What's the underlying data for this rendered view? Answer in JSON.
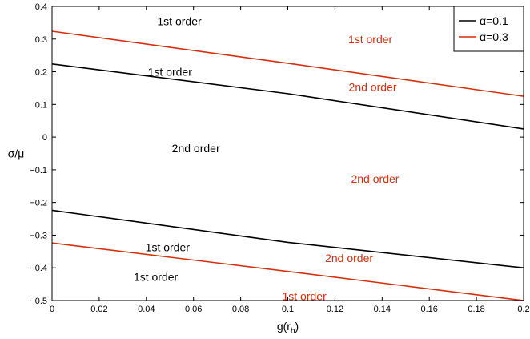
{
  "chart_data": {
    "type": "line",
    "xlabel": "g(r_h)",
    "ylabel": "σ/μ",
    "xlim": [
      0,
      0.2
    ],
    "ylim": [
      -0.5,
      0.4
    ],
    "xticks": [
      0,
      0.02,
      0.04,
      0.06,
      0.08,
      0.1,
      0.12,
      0.14,
      0.16,
      0.18,
      0.2
    ],
    "xtick_labels": [
      "0",
      "0.02",
      "0.04",
      "0.06",
      "0.08",
      "0.1",
      "0.12",
      "0.14",
      "0.16",
      "0.18",
      "0.2"
    ],
    "yticks": [
      -0.5,
      -0.4,
      -0.3,
      -0.2,
      -0.1,
      0,
      0.1,
      0.2,
      0.3,
      0.4
    ],
    "ytick_labels": [
      "−0.5",
      "−0.4",
      "−0.3",
      "−0.2",
      "−0.1",
      "0",
      "0.1",
      "0.2",
      "0.3",
      "0.4"
    ],
    "grid": false,
    "legend_position": "top-right",
    "series": [
      {
        "name": "α=0.1",
        "color": "#000000",
        "lines": [
          {
            "x": [
              0,
              0.1,
              0.2
            ],
            "y": [
              0.224,
              0.133,
              0.025
            ]
          },
          {
            "x": [
              0,
              0.1,
              0.2
            ],
            "y": [
              -0.224,
              -0.322,
              -0.4
            ]
          }
        ]
      },
      {
        "name": "α=0.3",
        "color": "#d62f0e",
        "lines": [
          {
            "x": [
              0,
              0.1,
              0.2
            ],
            "y": [
              0.324,
              0.226,
              0.125
            ]
          },
          {
            "x": [
              0,
              0.1,
              0.2
            ],
            "y": [
              -0.324,
              -0.411,
              -0.5
            ]
          }
        ]
      }
    ],
    "annotations": [
      {
        "text": "1st order",
        "x": 0.054,
        "y": 0.355,
        "color": "#000000"
      },
      {
        "text": "1st order",
        "x": 0.135,
        "y": 0.3,
        "color": "#d62f0e"
      },
      {
        "text": "1st order",
        "x": 0.05,
        "y": 0.2,
        "color": "#000000"
      },
      {
        "text": "2nd order",
        "x": 0.136,
        "y": 0.154,
        "color": "#d62f0e"
      },
      {
        "text": "2nd order",
        "x": 0.061,
        "y": -0.034,
        "color": "#000000"
      },
      {
        "text": "2nd order",
        "x": 0.137,
        "y": -0.127,
        "color": "#d62f0e"
      },
      {
        "text": "1st order",
        "x": 0.049,
        "y": -0.337,
        "color": "#000000"
      },
      {
        "text": "2nd order",
        "x": 0.126,
        "y": -0.37,
        "color": "#d62f0e"
      },
      {
        "text": "1st order",
        "x": 0.044,
        "y": -0.428,
        "color": "#000000"
      },
      {
        "text": "1st order",
        "x": 0.107,
        "y": -0.487,
        "color": "#d62f0e"
      }
    ]
  }
}
